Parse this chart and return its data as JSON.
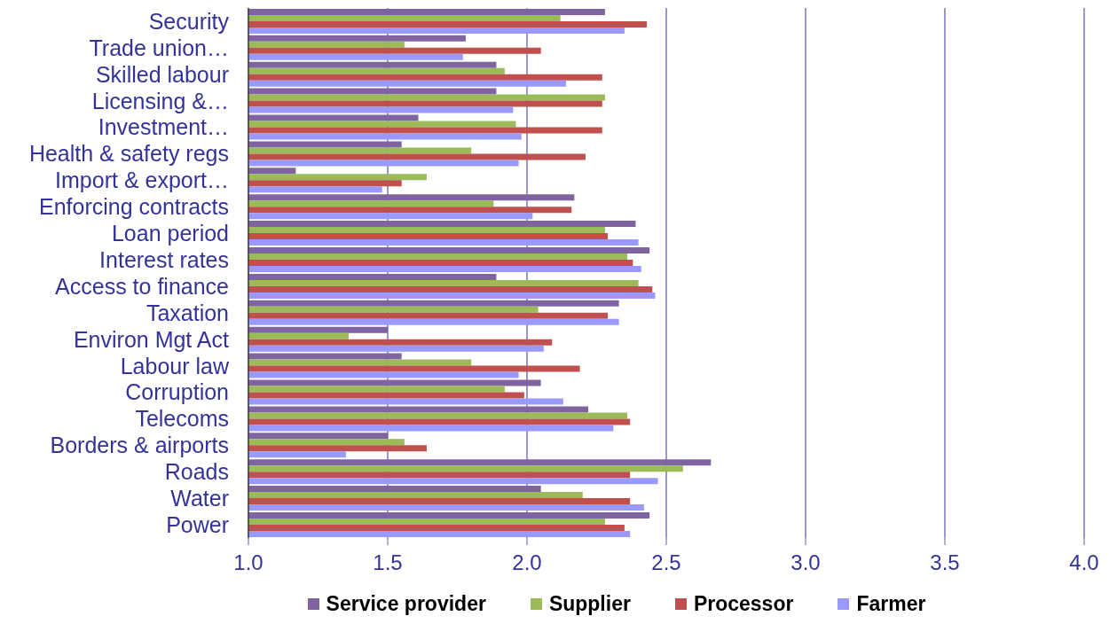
{
  "chart_data": {
    "type": "bar",
    "orientation": "horizontal",
    "categories": [
      "Security",
      "Trade union…",
      "Skilled labour",
      "Licensing &…",
      "Investment…",
      "Health & safety regs",
      "Import & export…",
      "Enforcing contracts",
      "Loan period",
      "Interest rates",
      "Access to finance",
      "Taxation",
      "Environ Mgt Act",
      "Labour law",
      "Corruption",
      "Telecoms",
      "Borders & airports",
      "Roads",
      "Water",
      "Power"
    ],
    "series": [
      {
        "name": "Service provider",
        "color": "#8064a2",
        "values": [
          2.28,
          1.78,
          1.89,
          1.89,
          1.61,
          1.55,
          1.17,
          2.17,
          2.39,
          2.44,
          1.89,
          2.33,
          1.5,
          1.55,
          2.05,
          2.22,
          1.5,
          2.66,
          2.05,
          2.44
        ]
      },
      {
        "name": "Supplier",
        "color": "#9bbb59",
        "values": [
          2.12,
          1.56,
          1.92,
          2.28,
          1.96,
          1.8,
          1.64,
          1.88,
          2.28,
          2.36,
          2.4,
          2.04,
          1.36,
          1.8,
          1.92,
          2.36,
          1.56,
          2.56,
          2.2,
          2.28
        ]
      },
      {
        "name": "Processor",
        "color": "#c0504d",
        "values": [
          2.43,
          2.05,
          2.27,
          2.27,
          2.27,
          2.21,
          1.55,
          2.16,
          2.29,
          2.38,
          2.45,
          2.29,
          2.09,
          2.19,
          1.99,
          2.37,
          1.64,
          2.37,
          2.37,
          2.35
        ]
      },
      {
        "name": "Farmer",
        "color": "#9999ff",
        "values": [
          2.35,
          1.77,
          2.14,
          1.95,
          1.98,
          1.97,
          1.48,
          2.02,
          2.4,
          2.41,
          2.46,
          2.33,
          2.06,
          1.97,
          2.13,
          2.31,
          1.35,
          2.47,
          2.42,
          2.37
        ]
      }
    ],
    "xlim": [
      1,
      4
    ],
    "xticks": [
      {
        "value": 1,
        "label": "1.0"
      },
      {
        "value": 1.5,
        "label": "1.5"
      },
      {
        "value": 2,
        "label": "2.0"
      },
      {
        "value": 2.5,
        "label": "2.5"
      },
      {
        "value": 3,
        "label": "3.0"
      },
      {
        "value": 3.5,
        "label": "3.5"
      },
      {
        "value": 4,
        "label": "4.0"
      }
    ],
    "grid": "x",
    "legend": "bottom"
  }
}
